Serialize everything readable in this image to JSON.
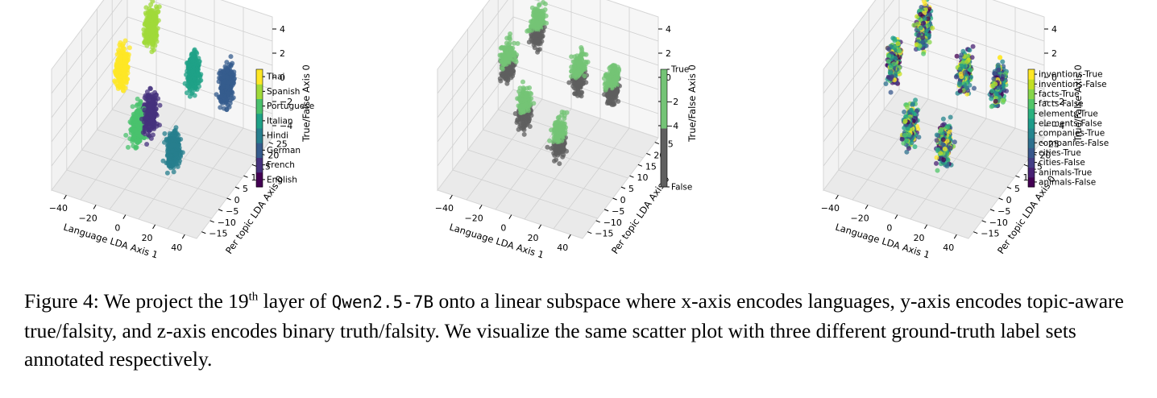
{
  "figure": {
    "caption": {
      "label": "Figure 4:",
      "part1": " We project the 19",
      "sup": "th",
      "part2": " layer of ",
      "code": "Qwen2.5-7B",
      "part3": " onto a linear subspace where x-axis encodes languages, y-axis encodes topic-aware true/falsity, and z-axis encodes binary truth/falsity. We visualize the same scatter plot with three different ground-truth label sets annotated respectively."
    }
  },
  "chart_data": [
    {
      "type": "scatter",
      "title": "",
      "xlabel": "Language LDA Axis 1",
      "ylabel": "Per topic LDA Axis 0",
      "zlabel": "True/False Axis 0",
      "xticks": [
        "−40",
        "−20",
        "0",
        "20",
        "40"
      ],
      "yticks": [
        "−15",
        "−10",
        "−5",
        "0",
        "5",
        "10",
        "15",
        "20",
        "25"
      ],
      "zticks": [
        "−4",
        "−2",
        "0",
        "2",
        "4"
      ],
      "xlim": [
        -50,
        48
      ],
      "ylim": [
        -18,
        27
      ],
      "zlim": [
        -5,
        5
      ],
      "clusters": [
        {
          "x": -40,
          "y": 15,
          "z": -0.5,
          "language": "Thai"
        },
        {
          "x": -28,
          "y": 22,
          "z": 2.0,
          "language": "Spanish"
        },
        {
          "x": -12,
          "y": 0,
          "z": -1.5,
          "language": "Portuguese"
        },
        {
          "x": -6,
          "y": 2,
          "z": -0.5,
          "language": "French"
        },
        {
          "x": 8,
          "y": 15,
          "z": 1.0,
          "language": "Italian"
        },
        {
          "x": 14,
          "y": -2,
          "z": -2.0,
          "language": "Hindi"
        },
        {
          "x": 32,
          "y": 14,
          "z": 1.2,
          "language": "German"
        }
      ],
      "colorbar": {
        "labels": [
          "English",
          "French",
          "German",
          "Hindi",
          "Italian",
          "Portuguese",
          "Spanish",
          "Thai"
        ],
        "colors": [
          "#440154",
          "#46327e",
          "#365c8d",
          "#277f8e",
          "#1fa187",
          "#4ac16d",
          "#a0da39",
          "#fde725"
        ]
      }
    },
    {
      "type": "scatter",
      "title": "",
      "xlabel": "Language LDA Axis 1",
      "ylabel": "Per topic LDA Axis 0",
      "zlabel": "True/False Axis 0",
      "xticks": [
        "−40",
        "−20",
        "0",
        "20",
        "40"
      ],
      "yticks": [
        "−15",
        "−10",
        "−5",
        "0",
        "5",
        "10",
        "15",
        "20",
        "25"
      ],
      "zticks": [
        "−4",
        "−2",
        "0",
        "2",
        "4"
      ],
      "xlim": [
        -50,
        48
      ],
      "ylim": [
        -18,
        27
      ],
      "zlim": [
        -5,
        5
      ],
      "clusters": [
        {
          "x": -40,
          "y": 15,
          "z": 0
        },
        {
          "x": -28,
          "y": 22,
          "z": 2.0
        },
        {
          "x": -12,
          "y": 0,
          "z": 0
        },
        {
          "x": 8,
          "y": 15,
          "z": 1.0
        },
        {
          "x": 14,
          "y": -2,
          "z": -1.0
        },
        {
          "x": 32,
          "y": 14,
          "z": 1.2
        }
      ],
      "colorbar": {
        "labels": [
          "False",
          "True"
        ],
        "colors": [
          "#5f5f5f",
          "#74c476"
        ]
      }
    },
    {
      "type": "scatter",
      "title": "",
      "xlabel": "Language LDA Axis 1",
      "ylabel": "Per topic LDA Axis 0",
      "zlabel": "True/False Axis 0",
      "xticks": [
        "−40",
        "−20",
        "0",
        "20",
        "40"
      ],
      "yticks": [
        "−15",
        "−10",
        "−5",
        "0",
        "5",
        "10",
        "15",
        "20",
        "25"
      ],
      "zticks": [
        "−4",
        "−2",
        "0",
        "2",
        "4"
      ],
      "xlim": [
        -50,
        48
      ],
      "ylim": [
        -18,
        27
      ],
      "zlim": [
        -5,
        5
      ],
      "clusters": [
        {
          "x": -40,
          "y": 15,
          "z": 0
        },
        {
          "x": -28,
          "y": 22,
          "z": 2.0
        },
        {
          "x": -12,
          "y": 0,
          "z": -1.5
        },
        {
          "x": 8,
          "y": 15,
          "z": 1.0
        },
        {
          "x": 14,
          "y": -2,
          "z": -1.5
        },
        {
          "x": 32,
          "y": 14,
          "z": 1.2
        }
      ],
      "colorbar": {
        "labels": [
          "animals-False",
          "animals-True",
          "cities-False",
          "cities-True",
          "companies-False",
          "companies-True",
          "elements-False",
          "elements-True",
          "facts-False",
          "facts-True",
          "inventions-False",
          "inventions-True"
        ],
        "colors": [
          "#440154",
          "#482173",
          "#433e85",
          "#38588c",
          "#2d708e",
          "#25858e",
          "#1e9b8a",
          "#2ab07f",
          "#52c569",
          "#86d549",
          "#c2df23",
          "#fde725"
        ]
      }
    }
  ]
}
